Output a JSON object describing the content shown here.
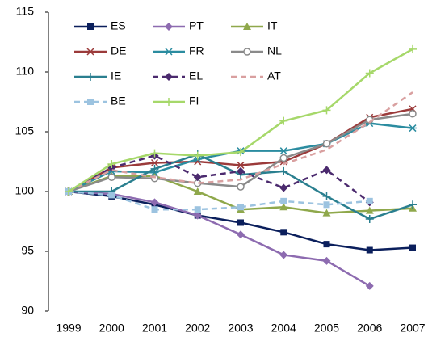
{
  "chart_data": {
    "type": "line",
    "categories": [
      "1999",
      "2000",
      "2001",
      "2002",
      "2003",
      "2004",
      "2005",
      "2006",
      "2007"
    ],
    "ylim": [
      90,
      115
    ],
    "yticks": [
      90,
      95,
      100,
      105,
      110,
      115
    ],
    "series": [
      {
        "name": "ES",
        "color": "#0b1f5c",
        "marker": "square",
        "dashed": false,
        "values": [
          100,
          99.6,
          98.9,
          98.0,
          97.4,
          96.6,
          95.6,
          95.1,
          95.3
        ]
      },
      {
        "name": "PT",
        "color": "#8d6bb0",
        "marker": "diamond",
        "dashed": false,
        "values": [
          100,
          99.8,
          99.1,
          98.0,
          96.4,
          94.7,
          94.2,
          92.1,
          null
        ]
      },
      {
        "name": "IT",
        "color": "#8fa84b",
        "marker": "triangle",
        "dashed": false,
        "values": [
          100,
          101.3,
          101.3,
          100.0,
          98.5,
          98.7,
          98.2,
          98.4,
          98.6
        ]
      },
      {
        "name": "DE",
        "color": "#9b3a3a",
        "marker": "x",
        "dashed": false,
        "values": [
          100,
          102.0,
          102.4,
          102.5,
          102.2,
          102.5,
          104.0,
          106.2,
          106.9
        ]
      },
      {
        "name": "FR",
        "color": "#2b8ca0",
        "marker": "star",
        "dashed": false,
        "values": [
          100,
          101.7,
          101.6,
          102.7,
          103.4,
          103.4,
          104.0,
          105.7,
          105.3
        ]
      },
      {
        "name": "NL",
        "color": "#8a8a8a",
        "marker": "circle",
        "dashed": false,
        "values": [
          100,
          101.2,
          101.1,
          100.7,
          100.4,
          102.8,
          104.0,
          106.0,
          106.5
        ]
      },
      {
        "name": "IE",
        "color": "#2a7f8f",
        "marker": "plus",
        "dashed": false,
        "values": [
          100,
          100.0,
          101.9,
          103.1,
          101.4,
          101.7,
          99.6,
          97.7,
          98.9
        ]
      },
      {
        "name": "EL",
        "color": "#4b2a6e",
        "marker": "diamond",
        "dashed": true,
        "values": [
          100,
          102.0,
          103.0,
          101.2,
          101.7,
          100.3,
          101.8,
          99.1,
          null
        ]
      },
      {
        "name": "AT",
        "color": "#d9a0a0",
        "marker": "none",
        "dashed": true,
        "values": [
          100,
          101.8,
          101.2,
          100.7,
          101.0,
          102.3,
          103.5,
          105.8,
          108.3
        ]
      },
      {
        "name": "BE",
        "color": "#9cc3e0",
        "marker": "square",
        "dashed": true,
        "values": [
          100,
          99.7,
          98.5,
          98.5,
          98.7,
          99.2,
          98.9,
          99.2,
          null
        ]
      },
      {
        "name": "FI",
        "color": "#a6d86a",
        "marker": "plus",
        "dashed": false,
        "values": [
          100,
          102.3,
          103.2,
          103.0,
          103.3,
          105.9,
          106.8,
          109.9,
          111.9
        ]
      }
    ]
  }
}
